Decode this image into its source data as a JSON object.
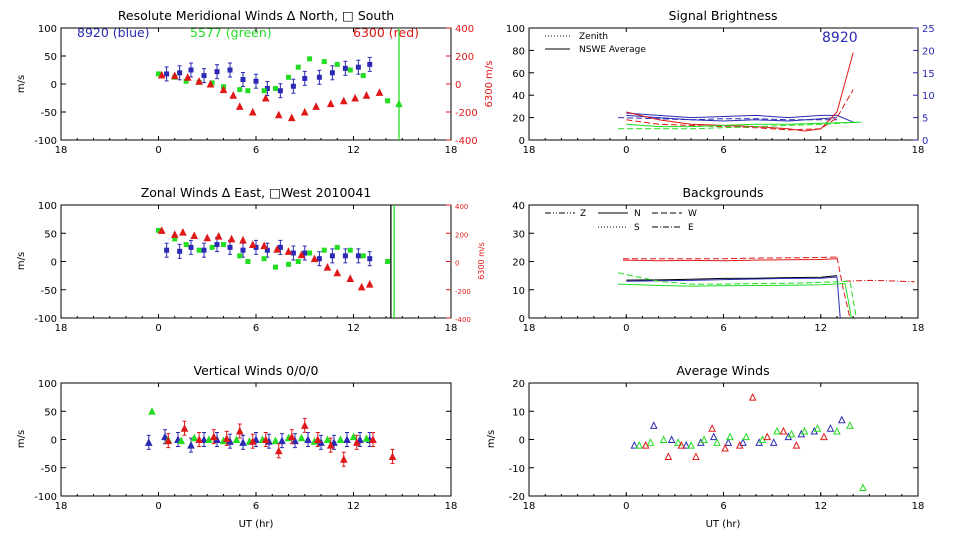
{
  "colors": {
    "blue": "#2a2ab4",
    "green": "#22dd22",
    "red": "#e01818",
    "axis": "#000000"
  },
  "panels": {
    "meridional": {
      "title": "Resolute Meridional Winds ∆ North, □ South",
      "ylabel": "m/s",
      "ylabel_right": "6300 m/s",
      "legend": {
        "blue": "8920 (blue)",
        "green": "5577 (green)",
        "red": "6300 (red)"
      }
    },
    "zonal": {
      "title": "Zonal Winds ∆ East, □West 2010041",
      "ylabel": "m/s",
      "ylabel_right": "6300 m/s"
    },
    "vertical": {
      "title": "Vertical Winds 0/0/0",
      "ylabel": "m/s",
      "xlabel": "UT (hr)"
    },
    "brightness": {
      "title": "Signal Brightness",
      "legend": [
        "Zenith",
        "NSWE Average"
      ],
      "annotation": "8920"
    },
    "backgrounds": {
      "title": "Backgrounds",
      "legend": [
        "Z",
        "N",
        "W",
        "S",
        "E"
      ]
    },
    "average": {
      "title": "Average Winds",
      "ylabel": "m/s",
      "xlabel": "UT (hr)"
    }
  },
  "chart_data": [
    {
      "id": "meridional",
      "type": "scatter",
      "xticks": [
        "18",
        "0",
        "6",
        "12",
        "18"
      ],
      "xlim": [
        -6,
        18
      ],
      "ylim": [
        -100,
        100
      ],
      "yticks": [
        100,
        50,
        0,
        -50,
        -100
      ],
      "ylim_right": [
        -400,
        400
      ],
      "yticks_right": [
        400,
        200,
        0,
        -200,
        -400
      ],
      "series": [
        {
          "color": "blue",
          "marker": "square-err",
          "x": [
            0.5,
            1.3,
            2,
            2.8,
            3.6,
            4.4,
            5.2,
            6,
            6.7,
            7.5,
            8.3,
            9,
            9.9,
            10.7,
            11.5,
            12.3,
            13
          ],
          "y": [
            18,
            20,
            25,
            15,
            22,
            25,
            8,
            5,
            -8,
            -12,
            -4,
            10,
            12,
            20,
            28,
            30,
            35
          ]
        },
        {
          "color": "green",
          "marker": "square",
          "x": [
            0,
            1,
            1.7,
            2.5,
            3.3,
            4,
            5,
            5.5,
            6.5,
            7.2,
            8,
            8.6,
            9.3,
            10.2,
            11,
            11.8,
            12.6,
            14.1
          ],
          "y": [
            18,
            12,
            5,
            3,
            2,
            -5,
            -10,
            -12,
            -12,
            -8,
            12,
            30,
            45,
            40,
            35,
            25,
            15,
            -30
          ]
        },
        {
          "color": "red",
          "marker": "triangle",
          "x": [
            0.2,
            1,
            1.8,
            2.5,
            3.2,
            4,
            4.6,
            5,
            5.8,
            6.6,
            7.4,
            8.2,
            9,
            9.7,
            10.6,
            11.4,
            12.1,
            12.8,
            13.6
          ],
          "y": [
            16,
            15,
            12,
            5,
            0,
            -10,
            -20,
            -40,
            -50,
            -25,
            -55,
            -60,
            -50,
            -40,
            -35,
            -30,
            -25,
            -20,
            -15
          ]
        },
        {
          "color": "green",
          "marker": "triangle-line",
          "x": [
            14.8
          ],
          "y": [
            -35
          ]
        }
      ],
      "vlines": [
        {
          "x": 14.8,
          "color": "green"
        }
      ]
    },
    {
      "id": "zonal",
      "type": "scatter",
      "xticks": [
        "18",
        "0",
        "6",
        "12",
        "18"
      ],
      "xlim": [
        -6,
        18
      ],
      "ylim": [
        -100,
        100
      ],
      "yticks": [
        100,
        50,
        0,
        -50,
        -100
      ],
      "ylim_right": [
        -400,
        400
      ],
      "yticks_right": [
        400,
        200,
        0,
        -200,
        -400
      ],
      "series": [
        {
          "color": "blue",
          "marker": "square-err",
          "x": [
            0.5,
            1.3,
            2,
            2.8,
            3.6,
            4.4,
            5.2,
            6,
            6.7,
            7.5,
            8.3,
            9,
            9.9,
            10.7,
            11.5,
            12.3,
            13
          ],
          "y": [
            20,
            18,
            25,
            20,
            30,
            25,
            20,
            25,
            20,
            25,
            15,
            15,
            5,
            10,
            10,
            10,
            5
          ]
        },
        {
          "color": "green",
          "marker": "square",
          "x": [
            0,
            1,
            1.7,
            2.5,
            3.3,
            4,
            5,
            5.5,
            6.5,
            7.2,
            8,
            8.6,
            9.3,
            10.2,
            11,
            11.8,
            12.6,
            14.1
          ],
          "y": [
            55,
            40,
            30,
            20,
            25,
            30,
            10,
            0,
            5,
            -10,
            -5,
            0,
            15,
            20,
            25,
            20,
            10,
            0
          ]
        },
        {
          "color": "red",
          "marker": "triangle",
          "x": [
            0.2,
            1,
            1.5,
            2.2,
            3,
            3.7,
            4.5,
            5.2,
            5.8,
            6.5,
            7.3,
            8,
            8.8,
            9.6,
            10.4,
            11,
            11.8,
            12.5,
            13
          ],
          "y": [
            55,
            48,
            52,
            46,
            42,
            45,
            40,
            38,
            30,
            28,
            22,
            18,
            12,
            5,
            -10,
            -20,
            -30,
            -45,
            -40
          ]
        }
      ],
      "vlines": [
        {
          "x": 14.3,
          "color": "black"
        },
        {
          "x": 14.5,
          "color": "green"
        }
      ]
    },
    {
      "id": "vertical",
      "type": "scatter",
      "xticks": [
        "18",
        "0",
        "6",
        "12",
        "18"
      ],
      "xlim": [
        -6,
        18
      ],
      "ylim": [
        -100,
        100
      ],
      "yticks": [
        100,
        50,
        0,
        -50,
        -100
      ],
      "series": [
        {
          "color": "blue",
          "marker": "triangle-err",
          "x": [
            -0.6,
            0.4,
            1.2,
            2,
            2.8,
            3.6,
            4.4,
            5.2,
            6,
            6.8,
            7.6,
            8.4,
            9.2,
            10,
            10.8,
            11.6,
            12.4,
            13
          ],
          "y": [
            -5,
            5,
            0,
            -10,
            0,
            0,
            -3,
            -5,
            0,
            -3,
            -2,
            -2,
            0,
            -5,
            -5,
            0,
            0,
            0
          ]
        },
        {
          "color": "green",
          "marker": "triangle",
          "x": [
            -0.4,
            0.6,
            1.4,
            2.2,
            3.1,
            4,
            4.8,
            5.6,
            6.4,
            7.2,
            8,
            8.8,
            9.6,
            10.4,
            11.2,
            12,
            12.8
          ],
          "y": [
            50,
            0,
            -2,
            3,
            0,
            -2,
            0,
            -3,
            0,
            -2,
            3,
            3,
            -3,
            0,
            0,
            5,
            2
          ]
        },
        {
          "color": "red",
          "marker": "triangle-err",
          "x": [
            0.6,
            1.6,
            2.5,
            3.4,
            4.2,
            5,
            5.8,
            6.6,
            7.4,
            8.2,
            9,
            9.8,
            10.6,
            11.4,
            12.2,
            13.2,
            14.4
          ],
          "y": [
            -2,
            20,
            0,
            5,
            2,
            15,
            -3,
            0,
            -20,
            5,
            25,
            0,
            -10,
            -35,
            -5,
            0,
            -30
          ]
        }
      ],
      "xlabel": "UT (hr)"
    },
    {
      "id": "brightness",
      "type": "line",
      "xticks": [
        "18",
        "0",
        "6",
        "12",
        "18"
      ],
      "xlim": [
        -6,
        18
      ],
      "ylim": [
        0,
        100
      ],
      "yticks": [
        100,
        80,
        60,
        40,
        20,
        0
      ],
      "ylim_right": [
        0,
        25
      ],
      "yticks_right": [
        25,
        20,
        15,
        10,
        5,
        0
      ],
      "series": [
        {
          "color": "blue",
          "style": "solid",
          "x": [
            0,
            2,
            4,
            6,
            8,
            10,
            12,
            13,
            14
          ],
          "y": [
            24,
            22,
            20,
            21,
            22,
            20,
            22,
            22,
            16
          ]
        },
        {
          "color": "blue",
          "style": "dashed",
          "x": [
            -0.5,
            2,
            4,
            6,
            8,
            10,
            12,
            13
          ],
          "y": [
            20,
            19,
            18,
            19,
            19,
            18,
            18,
            18
          ]
        },
        {
          "color": "blue",
          "style": "solid",
          "x": [
            0,
            2,
            4,
            6,
            8,
            10,
            12,
            13
          ],
          "y": [
            22,
            20,
            18,
            17,
            18,
            17,
            19,
            20
          ]
        },
        {
          "color": "red",
          "style": "solid",
          "x": [
            0,
            2,
            4,
            6,
            8,
            10,
            11,
            12,
            13,
            14
          ],
          "y": [
            25,
            18,
            14,
            13,
            12,
            10,
            8,
            10,
            25,
            78
          ]
        },
        {
          "color": "red",
          "style": "dashed",
          "x": [
            0,
            2,
            4,
            6,
            8,
            10,
            12,
            13,
            14
          ],
          "y": [
            18,
            14,
            13,
            12,
            11,
            9,
            10,
            20,
            45
          ]
        },
        {
          "color": "green",
          "style": "solid",
          "x": [
            0,
            2,
            4,
            6,
            8,
            10,
            12,
            14.5
          ],
          "y": [
            14,
            12,
            12,
            13,
            14,
            14,
            15,
            16
          ]
        },
        {
          "color": "green",
          "style": "dashed",
          "x": [
            -0.5,
            2,
            4,
            6,
            8,
            10,
            12,
            14.5
          ],
          "y": [
            10,
            10,
            10,
            11,
            12,
            13,
            14,
            16
          ]
        }
      ]
    },
    {
      "id": "backgrounds",
      "type": "line",
      "xticks": [
        "18",
        "0",
        "6",
        "12",
        "18"
      ],
      "xlim": [
        -6,
        18
      ],
      "ylim": [
        0,
        40
      ],
      "yticks": [
        40,
        30,
        20,
        10,
        0
      ],
      "series": [
        {
          "color": "red",
          "style": "solid",
          "x": [
            -0.2,
            2,
            4,
            6,
            8,
            10,
            12,
            13
          ],
          "y": [
            20.5,
            20.3,
            20.4,
            20.3,
            20.5,
            20.6,
            20.7,
            21
          ]
        },
        {
          "color": "red",
          "style": "dashed",
          "x": [
            -0.2,
            2,
            4,
            6,
            8,
            10,
            12,
            13
          ],
          "y": [
            21,
            21,
            21,
            21,
            21.2,
            21.3,
            21.4,
            21.6
          ]
        },
        {
          "color": "red",
          "style": "dashed",
          "x": [
            13,
            13.4,
            13.8
          ],
          "y": [
            21.5,
            10,
            0
          ]
        },
        {
          "color": "red",
          "style": "dashdot",
          "x": [
            13.5,
            14.2,
            15,
            16,
            17.8
          ],
          "y": [
            13,
            13.2,
            13.3,
            13.2,
            12.8
          ]
        },
        {
          "color": "black",
          "style": "solid",
          "x": [
            0,
            2,
            4,
            6,
            8,
            10,
            12,
            13
          ],
          "y": [
            13.4,
            13.5,
            13.7,
            14,
            14.1,
            14.3,
            14.4,
            15
          ]
        },
        {
          "color": "blue",
          "style": "solid",
          "x": [
            0,
            2,
            4,
            6,
            8,
            10,
            12,
            13,
            13.2
          ],
          "y": [
            13,
            13.2,
            13.3,
            13.6,
            13.8,
            14,
            14.1,
            14.5,
            0
          ]
        },
        {
          "color": "green",
          "style": "solid",
          "x": [
            -0.5,
            2,
            4,
            6,
            8,
            10,
            12,
            13.5,
            13.9
          ],
          "y": [
            12,
            11.5,
            11.3,
            11.4,
            11.5,
            11.6,
            11.8,
            12.2,
            0
          ]
        },
        {
          "color": "green",
          "style": "dashed",
          "x": [
            -0.5,
            2,
            4,
            6,
            8,
            10,
            12,
            13.8,
            14.2
          ],
          "y": [
            16,
            13,
            12,
            12,
            12.2,
            12.3,
            12.6,
            13,
            0
          ]
        }
      ]
    },
    {
      "id": "average",
      "type": "scatter",
      "xticks": [
        "18",
        "0",
        "6",
        "12",
        "18"
      ],
      "xlim": [
        -6,
        18
      ],
      "ylim": [
        -20,
        20
      ],
      "yticks": [
        20,
        10,
        0,
        -10,
        -20
      ],
      "series": [
        {
          "color": "blue",
          "marker": "triangle-open",
          "x": [
            0.5,
            1.7,
            2.8,
            3.7,
            4.6,
            5.4,
            6.3,
            7.2,
            8.2,
            9.1,
            10,
            10.8,
            11.6,
            12.6,
            13.3
          ],
          "y": [
            -2,
            5,
            0,
            -2,
            -1,
            1,
            -1,
            -1,
            -1,
            -1,
            1,
            2,
            3,
            4,
            7
          ]
        },
        {
          "color": "green",
          "marker": "triangle-open",
          "x": [
            0.8,
            1.5,
            2.3,
            3.2,
            4,
            4.8,
            5.6,
            6.4,
            7.4,
            8.4,
            9.3,
            10.2,
            11,
            11.8,
            13,
            13.8,
            14.6
          ],
          "y": [
            -2,
            -1,
            0,
            -1,
            -2,
            0,
            -1,
            1,
            1,
            0,
            3,
            2,
            3,
            4,
            3,
            5,
            -17
          ]
        },
        {
          "color": "red",
          "marker": "triangle-open",
          "x": [
            1.2,
            2.6,
            3.4,
            4.3,
            5.3,
            6.1,
            7,
            7.8,
            8.7,
            9.7,
            10.5,
            12.2
          ],
          "y": [
            -2,
            -6,
            -2,
            -6,
            4,
            -3,
            -2,
            15,
            1,
            3,
            -2,
            1
          ]
        }
      ],
      "xlabel": "UT (hr)"
    }
  ]
}
